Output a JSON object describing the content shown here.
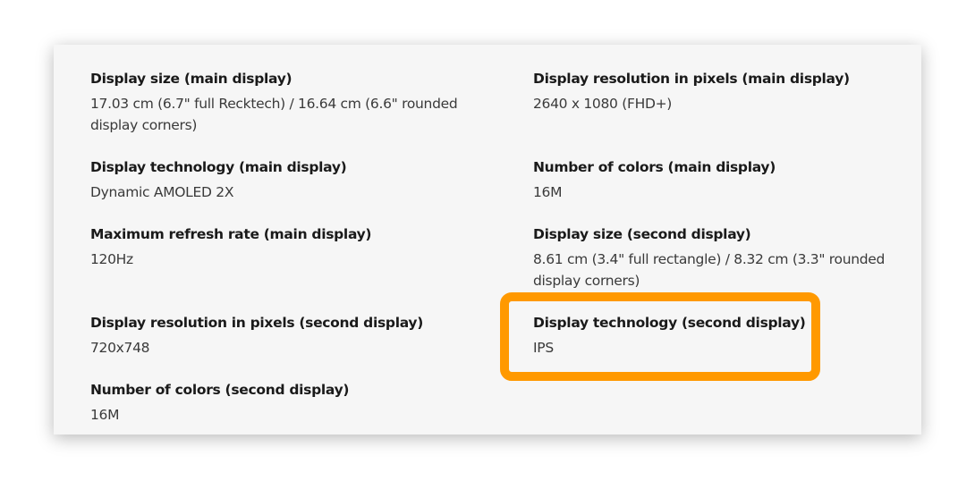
{
  "highlight_color": "#ff9900",
  "specs": [
    {
      "label": "Display size (main display)",
      "value": "17.03 cm (6.7\" full Recktech) / 16.64 cm (6.6\" rounded display corners)"
    },
    {
      "label": "Display resolution in pixels (main display)",
      "value": "2640 x 1080 (FHD+)"
    },
    {
      "label": "Display technology (main display)",
      "value": "Dynamic AMOLED 2X"
    },
    {
      "label": "Number of colors (main display)",
      "value": "16M"
    },
    {
      "label": "Maximum refresh rate (main display)",
      "value": "120Hz"
    },
    {
      "label": "Display size (second display)",
      "value": "8.61 cm (3.4\" full rectangle) / 8.32 cm (3.3\" rounded display corners)"
    },
    {
      "label": "Display resolution in pixels (second display)",
      "value": "720x748"
    },
    {
      "label": "Display technology (second display)",
      "value": "IPS"
    },
    {
      "label": "Number of colors (second display)",
      "value": "16M"
    }
  ]
}
